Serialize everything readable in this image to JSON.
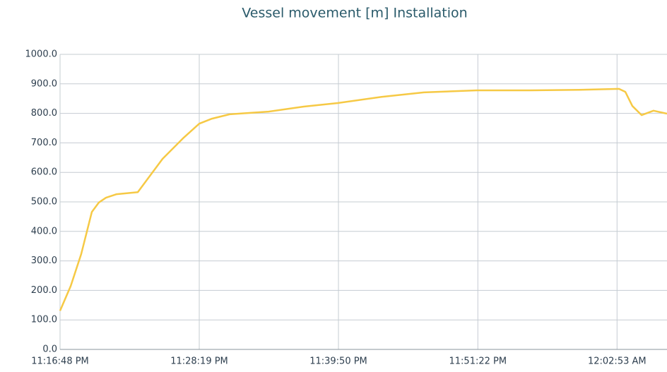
{
  "chart_data": {
    "type": "line",
    "title": "Vessel movement [m] Installation",
    "x": [
      "23:16:48",
      "23:17:41",
      "23:18:33",
      "23:19:26",
      "23:20:01",
      "23:20:36",
      "23:21:29",
      "23:23:14",
      "23:25:17",
      "23:27:02",
      "23:28:19",
      "23:29:22",
      "23:30:50",
      "23:34:03",
      "23:36:58",
      "23:39:46",
      "23:43:24",
      "23:46:54",
      "23:51:17",
      "23:55:41",
      "23:59:46",
      "00:03:03",
      "00:03:34",
      "00:04:09",
      "00:04:55",
      "00:05:54",
      "00:07:01"
    ],
    "series": [
      {
        "name": "Installation",
        "color": "#f6c945",
        "values": [
          131,
          215,
          323,
          466,
          498,
          514,
          526,
          533,
          646,
          718,
          765,
          782,
          797,
          806,
          823,
          835,
          856,
          871,
          878,
          878,
          880,
          883,
          873,
          825,
          794,
          809,
          799
        ]
      }
    ],
    "xlim": [
      "23:16:48",
      "00:07:01"
    ],
    "xticks": [
      {
        "value": "23:16:48",
        "label": "11:16:48 PM"
      },
      {
        "value": "23:28:19",
        "label": "11:28:19 PM"
      },
      {
        "value": "23:39:50",
        "label": "11:39:50 PM"
      },
      {
        "value": "23:51:22",
        "label": "11:51:22 PM"
      },
      {
        "value": "00:02:53",
        "label": "12:02:53 AM"
      }
    ],
    "ylim": [
      0,
      1000
    ],
    "yticks": [
      {
        "value": 0,
        "label": "0.0"
      },
      {
        "value": 100,
        "label": "100.0"
      },
      {
        "value": 200,
        "label": "200.0"
      },
      {
        "value": 300,
        "label": "300.0"
      },
      {
        "value": 400,
        "label": "400.0"
      },
      {
        "value": 500,
        "label": "500.0"
      },
      {
        "value": 600,
        "label": "600.0"
      },
      {
        "value": 700,
        "label": "700.0"
      },
      {
        "value": 800,
        "label": "800.0"
      },
      {
        "value": 900,
        "label": "900.0"
      },
      {
        "value": 1000,
        "label": "1000.0"
      }
    ],
    "grid": true
  }
}
